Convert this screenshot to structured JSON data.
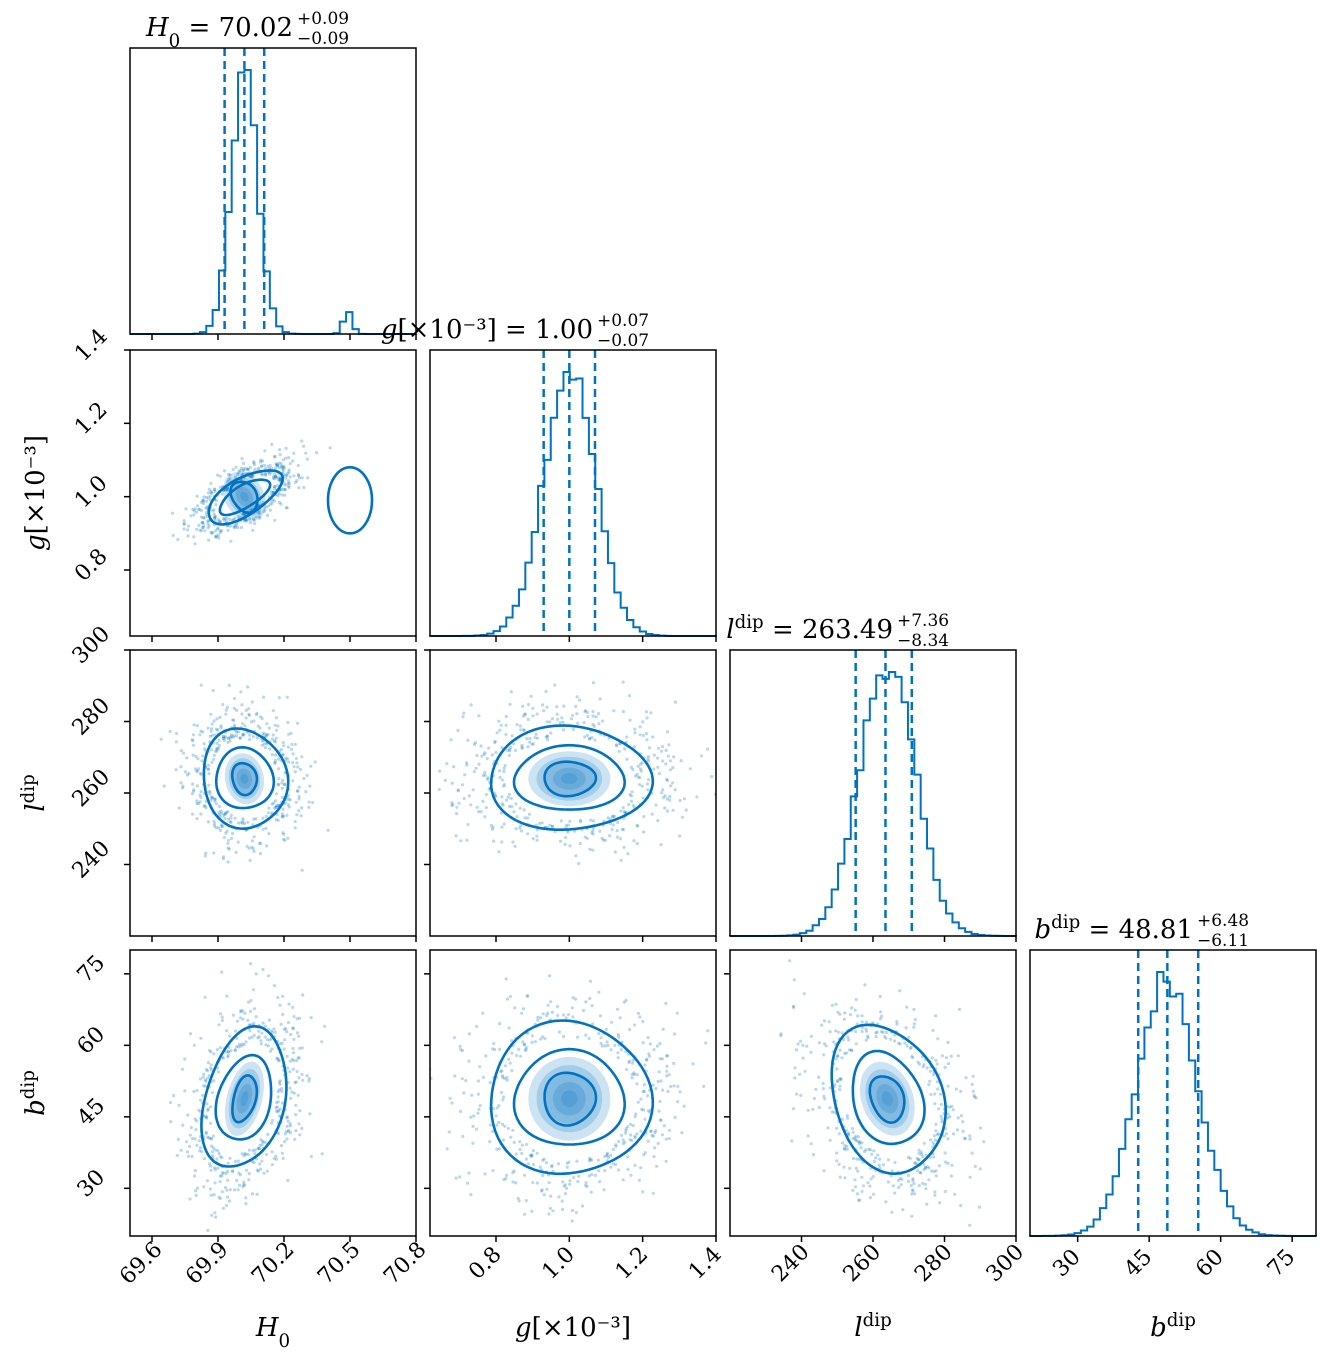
{
  "colors": {
    "accent": "#0072C1",
    "frame": "#000000",
    "background": "#ffffff"
  },
  "chart_data": {
    "type": "corner",
    "params": [
      {
        "symbol": "H",
        "sub": "0",
        "sup": "",
        "suffix": "",
        "median": 70.02,
        "err_plus": 0.09,
        "err_minus": 0.09,
        "title_value": "70.02",
        "title_plus": "+0.09",
        "title_minus": "−0.09",
        "range": [
          69.5,
          70.8
        ],
        "ticks": [
          69.6,
          69.9,
          70.2,
          70.5,
          70.8
        ],
        "tick_labels": [
          "69.6",
          "69.9",
          "70.2",
          "70.5",
          "70.8"
        ],
        "hist_peak": 70.02,
        "hist_sigma": 0.06,
        "secondary_mode": {
          "center": 70.49,
          "sigma": 0.02,
          "rel_height": 0.09
        }
      },
      {
        "symbol": "g",
        "sub": "",
        "sup": "",
        "suffix": "[×10⁻³]",
        "median": 1.0,
        "err_plus": 0.07,
        "err_minus": 0.07,
        "title_value": "1.00",
        "title_plus": "+0.07",
        "title_minus": "−0.07",
        "range": [
          0.62,
          1.4
        ],
        "ticks": [
          0.8,
          1.0,
          1.2,
          1.4
        ],
        "tick_labels": [
          "0.8",
          "1.0",
          "1.2",
          "1.4"
        ],
        "hist_peak": 1.0,
        "hist_sigma": 0.07
      },
      {
        "symbol": "l",
        "sub": "",
        "sup": "dip",
        "suffix": "",
        "median": 263.49,
        "err_plus": 7.36,
        "err_minus": 8.34,
        "title_value": "263.49",
        "title_plus": "+7.36",
        "title_minus": "−8.34",
        "range": [
          220,
          300
        ],
        "ticks": [
          240,
          260,
          280,
          300
        ],
        "tick_labels": [
          "240",
          "260",
          "280",
          "300"
        ],
        "hist_peak": 264,
        "hist_sigma": 7.8
      },
      {
        "symbol": "b",
        "sub": "",
        "sup": "dip",
        "suffix": "",
        "median": 48.81,
        "err_plus": 6.48,
        "err_minus": 6.11,
        "title_value": "48.81",
        "title_plus": "+6.48",
        "title_minus": "−6.11",
        "range": [
          20,
          80
        ],
        "ticks": [
          30,
          45,
          60,
          75
        ],
        "tick_labels": [
          "30",
          "45",
          "60",
          "75"
        ],
        "hist_peak": 48.8,
        "hist_sigma": 6.3
      }
    ],
    "pairs": [
      {
        "row": 1,
        "col": 0,
        "center": [
          70.02,
          1.0
        ],
        "axes": [
          [
            0.13,
            0.03
          ],
          [
            0.19,
            0.05
          ],
          [
            0.055,
            0.045
          ]
        ],
        "tilt": -0.55,
        "extra_contour": {
          "center": [
            70.5,
            0.99
          ],
          "r": [
            0.1,
            0.09
          ]
        }
      },
      {
        "row": 2,
        "col": 0,
        "center": [
          70.02,
          264
        ],
        "axes": [
          [
            0.13,
            8.5
          ],
          [
            0.19,
            14
          ],
          [
            0.055,
            4.5
          ]
        ],
        "tilt": -0.2
      },
      {
        "row": 2,
        "col": 1,
        "center": [
          1.0,
          264
        ],
        "axes": [
          [
            0.15,
            9
          ],
          [
            0.22,
            14.5
          ],
          [
            0.07,
            4.8
          ]
        ],
        "tilt": 0
      },
      {
        "row": 3,
        "col": 0,
        "center": [
          70.02,
          48.8
        ],
        "axes": [
          [
            0.12,
            9
          ],
          [
            0.18,
            15
          ],
          [
            0.05,
            5
          ]
        ],
        "tilt": 0.25
      },
      {
        "row": 3,
        "col": 1,
        "center": [
          1.0,
          48.8
        ],
        "axes": [
          [
            0.15,
            10
          ],
          [
            0.22,
            16
          ],
          [
            0.07,
            5.5
          ]
        ],
        "tilt": 0
      },
      {
        "row": 3,
        "col": 2,
        "center": [
          264,
          48.8
        ],
        "axes": [
          [
            9.5,
            10
          ],
          [
            15,
            16
          ],
          [
            4.5,
            5
          ]
        ],
        "tilt": -0.35
      }
    ],
    "quantile_lines": "dashed vertical lines at 16%, 50%, 84%"
  }
}
